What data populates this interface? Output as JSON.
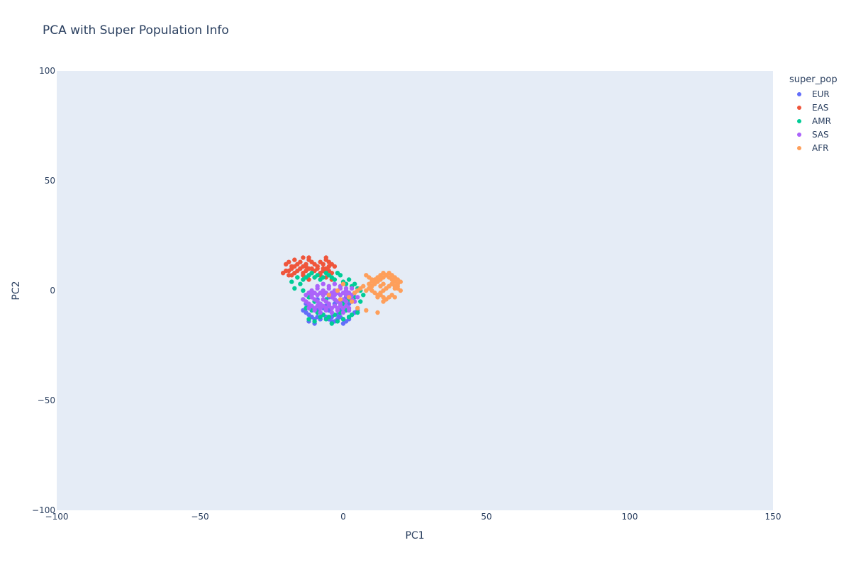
{
  "chart_data": {
    "type": "scatter",
    "title": "PCA with Super Population Info",
    "xlabel": "PC1",
    "ylabel": "PC2",
    "xlim": [
      -100,
      150
    ],
    "ylim": [
      -100,
      100
    ],
    "xticks": [
      -100,
      -50,
      0,
      50,
      100,
      150
    ],
    "yticks": [
      -100,
      -50,
      0,
      50,
      100
    ],
    "xtick_labels": [
      "−100",
      "−50",
      "0",
      "50",
      "100",
      "150"
    ],
    "ytick_labels": [
      "−100",
      "−50",
      "0",
      "50",
      "100"
    ],
    "grid": false,
    "background": "#e5ecf6",
    "legend_title": "super_pop",
    "legend_position": "top-right",
    "series": [
      {
        "name": "EUR",
        "color": "#636efa",
        "x": [
          -14,
          -13,
          -12,
          -11,
          -10,
          -9,
          -8,
          -7,
          -6,
          -5,
          -4,
          -3,
          -2,
          -1,
          0,
          1,
          2,
          3,
          4,
          5,
          -13,
          -12,
          -11,
          -10,
          -9,
          -8,
          -7,
          -6,
          -5,
          -4,
          -3,
          -2,
          -1,
          0,
          1,
          2,
          3,
          -12,
          -10,
          -8,
          -6,
          -4,
          -2,
          0,
          2,
          -11,
          -9,
          -7,
          -5,
          -3,
          -1,
          1
        ],
        "y": [
          -9,
          -10,
          -11,
          -12,
          -13,
          -12,
          -13,
          -11,
          -12,
          -13,
          -12,
          -14,
          -11,
          -12,
          -13,
          -14,
          -12,
          -11,
          -10,
          -9,
          -6,
          -7,
          -8,
          -5,
          -9,
          -10,
          -8,
          -7,
          -9,
          -10,
          -6,
          -8,
          -9,
          -7,
          -8,
          -6,
          -5,
          -14,
          -15,
          -13,
          -12,
          -14,
          -13,
          -15,
          -13,
          -3,
          -4,
          -2,
          -3,
          -4,
          -5,
          -3
        ]
      },
      {
        "name": "EAS",
        "color": "#ef553b",
        "x": [
          -20,
          -19,
          -18,
          -17,
          -16,
          -15,
          -14,
          -13,
          -12,
          -11,
          -10,
          -9,
          -8,
          -7,
          -6,
          -5,
          -4,
          -3,
          -19,
          -18,
          -17,
          -16,
          -15,
          -14,
          -13,
          -12,
          -11,
          -10,
          -9,
          -8,
          -7,
          -6,
          -5,
          -4,
          -18,
          -16,
          -14,
          -12,
          -10,
          -8,
          -6,
          -4,
          -17,
          -15,
          -13,
          -11,
          -9,
          -7,
          -5,
          -21,
          -20,
          -19,
          -14,
          -12,
          -6
        ],
        "y": [
          12,
          13,
          11,
          14,
          12,
          13,
          11,
          12,
          14,
          13,
          12,
          11,
          13,
          12,
          14,
          13,
          12,
          11,
          9,
          10,
          8,
          9,
          10,
          8,
          9,
          10,
          8,
          9,
          10,
          8,
          9,
          10,
          9,
          8,
          7,
          6,
          7,
          5,
          6,
          7,
          6,
          5,
          11,
          10,
          11,
          10,
          11,
          10,
          11,
          8,
          9,
          7,
          15,
          15,
          15
        ]
      },
      {
        "name": "AMR",
        "color": "#00cc96",
        "x": [
          -17,
          -15,
          -14,
          -13,
          -12,
          -11,
          -10,
          -9,
          -8,
          -7,
          -6,
          -5,
          -4,
          -3,
          -2,
          -1,
          0,
          1,
          2,
          3,
          4,
          5,
          6,
          7,
          -14,
          -12,
          -10,
          -8,
          -6,
          -4,
          -2,
          0,
          2,
          4,
          6,
          -13,
          -11,
          -9,
          -7,
          -5,
          -3,
          -1,
          1,
          3,
          5,
          -12,
          -10,
          -8,
          -6,
          -4,
          -2,
          0,
          2,
          -18,
          -16,
          -14
        ],
        "y": [
          1,
          3,
          5,
          6,
          7,
          8,
          6,
          7,
          5,
          6,
          8,
          7,
          6,
          5,
          8,
          7,
          4,
          3,
          5,
          2,
          3,
          1,
          0,
          -2,
          -4,
          -3,
          -5,
          -6,
          -4,
          -3,
          -5,
          -6,
          -4,
          -3,
          -5,
          -8,
          -9,
          -10,
          -11,
          -12,
          -11,
          -10,
          -9,
          -11,
          -10,
          -13,
          -14,
          -12,
          -13,
          -15,
          -14,
          -13,
          -12,
          4,
          6,
          0
        ]
      },
      {
        "name": "SAS",
        "color": "#ab63fa",
        "x": [
          -14,
          -13,
          -12,
          -11,
          -10,
          -9,
          -8,
          -7,
          -6,
          -5,
          -4,
          -3,
          -2,
          -1,
          0,
          1,
          2,
          3,
          4,
          5,
          -13,
          -12,
          -11,
          -10,
          -9,
          -8,
          -7,
          -6,
          -5,
          -4,
          -3,
          -2,
          -1,
          0,
          1,
          2,
          3,
          4,
          -12,
          -11,
          -10,
          -9,
          -8,
          -7,
          -6,
          -5,
          -4,
          -3,
          -2,
          -1,
          0,
          1,
          2,
          -11,
          -9,
          -7,
          -5,
          -3,
          -1,
          1,
          3,
          -10,
          -8,
          -6,
          -4,
          -2,
          0,
          2,
          -9,
          -7,
          -5,
          -3,
          -1,
          1
        ],
        "y": [
          -4,
          -5,
          -6,
          -3,
          -4,
          -5,
          -6,
          -4,
          -5,
          -6,
          -3,
          -4,
          -5,
          -6,
          -4,
          -5,
          -3,
          -4,
          -5,
          -3,
          -2,
          -1,
          -2,
          -1,
          -2,
          -1,
          -2,
          -1,
          -2,
          -1,
          -2,
          -1,
          -2,
          -1,
          -2,
          -1,
          -2,
          -1,
          -8,
          -7,
          -8,
          -7,
          -8,
          -7,
          -8,
          -7,
          -8,
          -7,
          -8,
          -7,
          -8,
          -7,
          -8,
          0,
          1,
          0,
          1,
          0,
          1,
          0,
          1,
          -9,
          -10,
          -9,
          -10,
          -9,
          -10,
          -9,
          2,
          3,
          2,
          3,
          2,
          1
        ]
      },
      {
        "name": "AFR",
        "color": "#fe9f5b",
        "x": [
          8,
          9,
          10,
          11,
          12,
          13,
          14,
          15,
          16,
          17,
          18,
          19,
          20,
          10,
          11,
          12,
          13,
          14,
          15,
          16,
          17,
          18,
          19,
          20,
          9,
          10,
          11,
          12,
          13,
          14,
          15,
          16,
          17,
          18,
          19,
          12,
          13,
          14,
          15,
          16,
          17,
          18,
          8,
          9,
          10,
          11,
          13,
          14,
          15,
          16,
          17,
          18,
          19,
          4,
          5,
          6,
          7,
          -2,
          0,
          2,
          3,
          5,
          8,
          12,
          14,
          -5,
          -1
        ],
        "y": [
          0,
          1,
          2,
          3,
          4,
          5,
          6,
          7,
          8,
          7,
          6,
          5,
          4,
          0,
          -1,
          -2,
          -1,
          0,
          1,
          2,
          3,
          2,
          1,
          0,
          3,
          4,
          5,
          6,
          7,
          8,
          7,
          6,
          5,
          4,
          3,
          -3,
          -2,
          -3,
          -4,
          -3,
          -2,
          -3,
          7,
          6,
          5,
          4,
          2,
          3,
          1,
          2,
          3,
          1,
          2,
          -1,
          0,
          1,
          2,
          0,
          3,
          -3,
          -5,
          -8,
          -9,
          -10,
          -5,
          -2,
          -4
        ]
      }
    ]
  }
}
